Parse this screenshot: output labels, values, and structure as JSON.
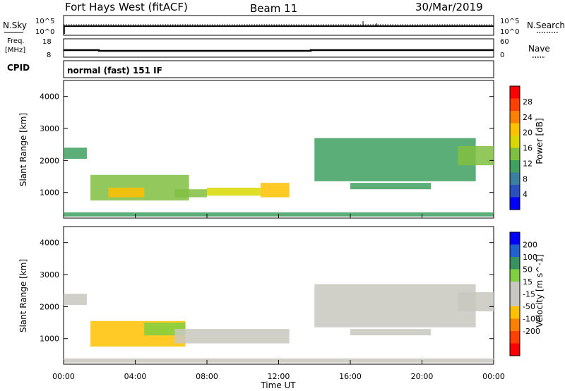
{
  "header": {
    "title": "Fort Hays West (fitACF)",
    "beam": "Beam 11",
    "date": "30/Mar/2019"
  },
  "noise_panel": {
    "left_label": "N.Sky",
    "right_label": "N.Search",
    "ticks": [
      "10^5",
      "10^0"
    ]
  },
  "freq_panel": {
    "left_label_1": "Freq.",
    "left_label_2": "[MHz]",
    "left_ticks": [
      "18",
      "8"
    ],
    "right_label": "Nave",
    "right_ticks": [
      "60",
      "0"
    ]
  },
  "cpid": {
    "label": "CPID",
    "value": "normal (fast) 151 IF"
  },
  "colors": {
    "power": [
      "#0000ff",
      "#2a4fbf",
      "#3a7fa0",
      "#40a060",
      "#80c040",
      "#d8d800",
      "#ffc000",
      "#ff8000",
      "#ff4000",
      "#ff0000"
    ],
    "velocity": [
      "#0000ff",
      "#2060d0",
      "#3a9060",
      "#80d040",
      "#c8c8c0",
      "#c8c8c0",
      "#ffc000",
      "#ff8000",
      "#ff4000",
      "#ff0000"
    ],
    "ground_scatter_grey": "#bebebe"
  },
  "chart_data": [
    {
      "type": "heatmap",
      "panel": "power",
      "ylabel": "Slant Range [km]",
      "yticks": [
        1000,
        2000,
        3000,
        4000
      ],
      "ylim": [
        200,
        4500
      ],
      "xlim": [
        0,
        24
      ],
      "colorbar_label": "Power [dB]",
      "colorbar_ticks": [
        4,
        8,
        12,
        16,
        20,
        24,
        28
      ],
      "colorbar_range": [
        0,
        32
      ],
      "regions": [
        {
          "t0": 0.0,
          "t1": 1.3,
          "r0": 2050,
          "r1": 2400,
          "level": 10
        },
        {
          "t0": 1.5,
          "t1": 7.0,
          "r0": 750,
          "r1": 1550,
          "level": 14
        },
        {
          "t0": 2.5,
          "t1": 4.5,
          "r0": 850,
          "r1": 1150,
          "level": 22
        },
        {
          "t0": 6.2,
          "t1": 8.0,
          "r0": 850,
          "r1": 1100,
          "level": 13
        },
        {
          "t0": 8.0,
          "t1": 11.0,
          "r0": 900,
          "r1": 1150,
          "level": 16
        },
        {
          "t0": 11.0,
          "t1": 12.6,
          "r0": 850,
          "r1": 1300,
          "level": 20
        },
        {
          "t0": 0.0,
          "t1": 24.0,
          "r0": 250,
          "r1": 380,
          "level": 12
        },
        {
          "t0": 14.0,
          "t1": 23.0,
          "r0": 1350,
          "r1": 2700,
          "level": 10
        },
        {
          "t0": 16.0,
          "t1": 20.5,
          "r0": 1100,
          "r1": 1300,
          "level": 11
        },
        {
          "t0": 22.0,
          "t1": 24.0,
          "r0": 1850,
          "r1": 2450,
          "level": 14
        }
      ]
    },
    {
      "type": "heatmap",
      "panel": "velocity",
      "ylabel": "Slant Range [km]",
      "yticks": [
        1000,
        2000,
        3000,
        4000
      ],
      "ylim": [
        200,
        4500
      ],
      "xlim": [
        0,
        24
      ],
      "colorbar_label": "Velocity [m s^-1]",
      "colorbar_ticks": [
        200,
        100,
        50,
        15,
        -15,
        -50,
        -100,
        -200
      ],
      "xticks": [
        "00:00",
        "04:00",
        "08:00",
        "12:00",
        "16:00",
        "20:00",
        "00:00"
      ],
      "xlabel": "Time UT",
      "regions": [
        {
          "t0": 0.0,
          "t1": 1.3,
          "r0": 2050,
          "r1": 2400,
          "level": 0
        },
        {
          "t0": 1.5,
          "t1": 6.8,
          "r0": 750,
          "r1": 1550,
          "level": -60
        },
        {
          "t0": 4.5,
          "t1": 6.8,
          "r0": 1100,
          "r1": 1500,
          "level": 40
        },
        {
          "t0": 6.2,
          "t1": 12.6,
          "r0": 850,
          "r1": 1300,
          "level": -30
        },
        {
          "t0": 0.0,
          "t1": 24.0,
          "r0": 250,
          "r1": 380,
          "level": -30
        },
        {
          "t0": 14.0,
          "t1": 23.0,
          "r0": 1350,
          "r1": 2700,
          "level": 0
        },
        {
          "t0": 16.0,
          "t1": 20.5,
          "r0": 1100,
          "r1": 1300,
          "level": 0
        },
        {
          "t0": 22.0,
          "t1": 24.0,
          "r0": 1850,
          "r1": 2450,
          "level": 0
        }
      ]
    }
  ]
}
